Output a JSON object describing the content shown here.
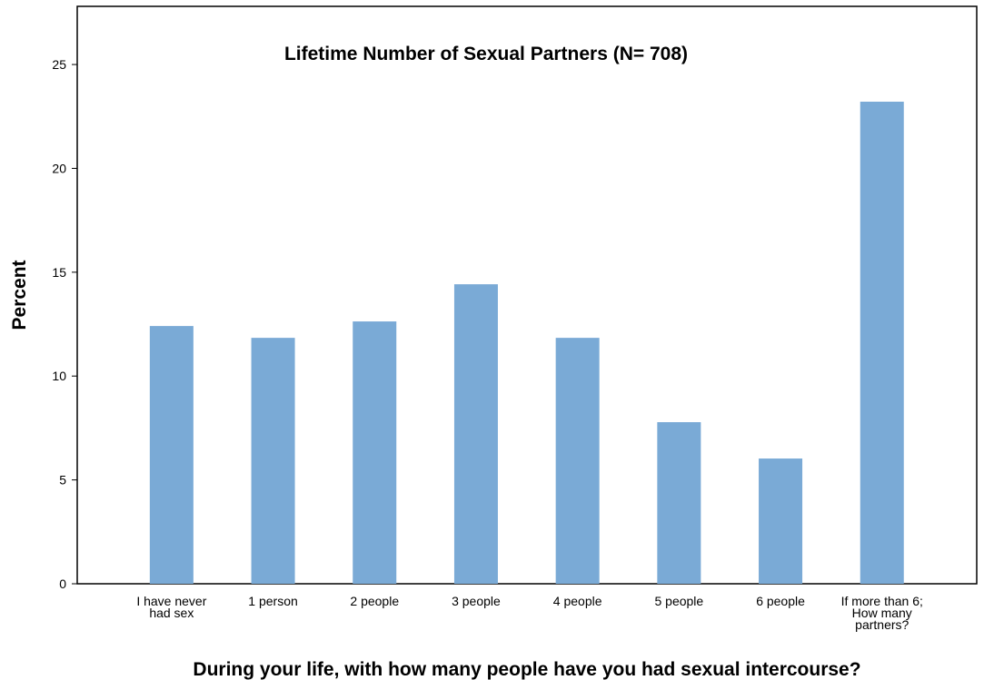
{
  "chart_data": {
    "type": "bar",
    "title": "Lifetime Number of Sexual Partners (N= 708)",
    "x_label": "During your life, with how many people have you had sexual intercourse?",
    "y_label": "Percent",
    "categories": [
      "I have never had sex",
      "1 person",
      "2 people",
      "3 people",
      "4 people",
      "5 people",
      "6 people",
      "If more than 6; How many partners?"
    ],
    "values": [
      12.41,
      11.84,
      12.63,
      14.42,
      11.84,
      7.78,
      6.03,
      23.21
    ],
    "color": "#7aaad6",
    "ylim": [
      0,
      27.8
    ],
    "yticks": [
      0,
      5,
      10,
      15,
      20,
      25
    ],
    "grid": false
  }
}
